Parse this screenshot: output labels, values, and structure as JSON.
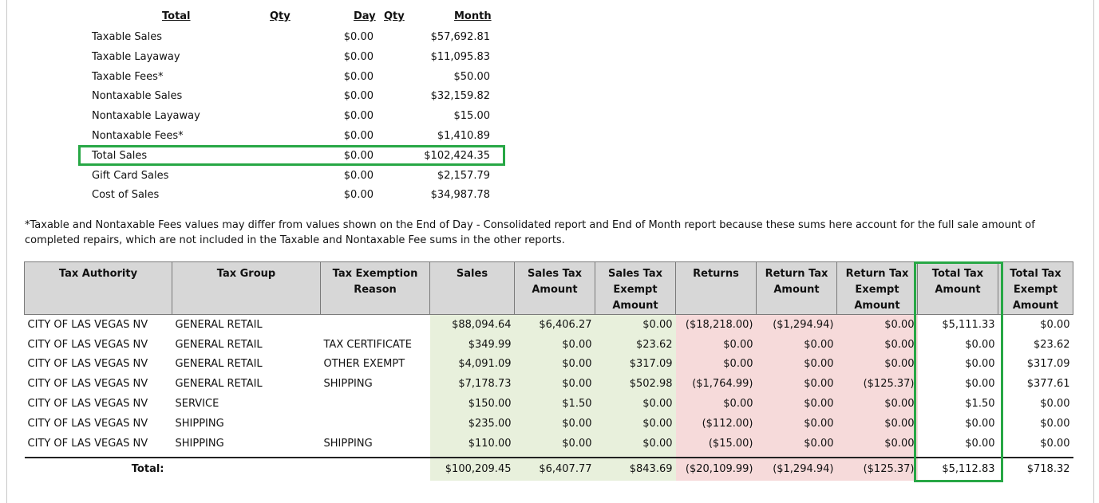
{
  "summary": {
    "headers": {
      "total": "Total",
      "qty1": "Qty",
      "day": "Day",
      "qty2": "Qty",
      "month": "Month"
    },
    "rows": [
      {
        "label": "Taxable Sales",
        "day": "$0.00",
        "month": "$57,692.81"
      },
      {
        "label": "Taxable Layaway",
        "day": "$0.00",
        "month": "$11,095.83"
      },
      {
        "label": "Taxable Fees*",
        "day": "$0.00",
        "month": "$50.00"
      },
      {
        "label": "Nontaxable Sales",
        "day": "$0.00",
        "month": "$32,159.82"
      },
      {
        "label": "Nontaxable Layaway",
        "day": "$0.00",
        "month": "$15.00"
      },
      {
        "label": "Nontaxable Fees*",
        "day": "$0.00",
        "month": "$1,410.89"
      },
      {
        "label": "Total Sales",
        "day": "$0.00",
        "month": "$102,424.35"
      },
      {
        "label": "Gift Card Sales",
        "day": "$0.00",
        "month": "$2,157.79"
      },
      {
        "label": "Cost of Sales",
        "day": "$0.00",
        "month": "$34,987.78"
      }
    ]
  },
  "note": "*Taxable and Nontaxable Fees values may differ from values shown on the End of Day - Consolidated report and End of Month report because these sums here account for the full sale amount of completed repairs, which are not included in the Taxable and Nontaxable Fee sums in the other reports.",
  "highlight_color": "#27a745",
  "tax_table": {
    "headers": [
      "Tax Authority",
      "Tax Group",
      "Tax Exemption Reason",
      "Sales",
      "Sales Tax Amount",
      "Sales Tax Exempt Amount",
      "Returns",
      "Return Tax Amount",
      "Return Tax Exempt Amount",
      "Total Tax Amount",
      "Total Tax Exempt Amount"
    ],
    "rows": [
      [
        "CITY OF LAS VEGAS NV",
        "GENERAL RETAIL",
        "",
        "$88,094.64",
        "$6,406.27",
        "$0.00",
        "($18,218.00)",
        "($1,294.94)",
        "$0.00",
        "$5,111.33",
        "$0.00"
      ],
      [
        "CITY OF LAS VEGAS NV",
        "GENERAL RETAIL",
        "TAX CERTIFICATE",
        "$349.99",
        "$0.00",
        "$23.62",
        "$0.00",
        "$0.00",
        "$0.00",
        "$0.00",
        "$23.62"
      ],
      [
        "CITY OF LAS VEGAS NV",
        "GENERAL RETAIL",
        "OTHER EXEMPT",
        "$4,091.09",
        "$0.00",
        "$317.09",
        "$0.00",
        "$0.00",
        "$0.00",
        "$0.00",
        "$317.09"
      ],
      [
        "CITY OF LAS VEGAS NV",
        "GENERAL RETAIL",
        "SHIPPING",
        "$7,178.73",
        "$0.00",
        "$502.98",
        "($1,764.99)",
        "$0.00",
        "($125.37)",
        "$0.00",
        "$377.61"
      ],
      [
        "CITY OF LAS VEGAS NV",
        "SERVICE",
        "",
        "$150.00",
        "$1.50",
        "$0.00",
        "$0.00",
        "$0.00",
        "$0.00",
        "$1.50",
        "$0.00"
      ],
      [
        "CITY OF LAS VEGAS NV",
        "SHIPPING",
        "",
        "$235.00",
        "$0.00",
        "$0.00",
        "($112.00)",
        "$0.00",
        "$0.00",
        "$0.00",
        "$0.00"
      ],
      [
        "CITY OF LAS VEGAS NV",
        "SHIPPING",
        "SHIPPING",
        "$110.00",
        "$0.00",
        "$0.00",
        "($15.00)",
        "$0.00",
        "$0.00",
        "$0.00",
        "$0.00"
      ]
    ],
    "total_label": "Total:",
    "totals": [
      "$100,209.45",
      "$6,407.77",
      "$843.69",
      "($20,109.99)",
      "($1,294.94)",
      "($125.37)",
      "$5,112.83",
      "$718.32"
    ],
    "green_bg": "#e8f0dc",
    "pink_bg": "#f6dada"
  }
}
